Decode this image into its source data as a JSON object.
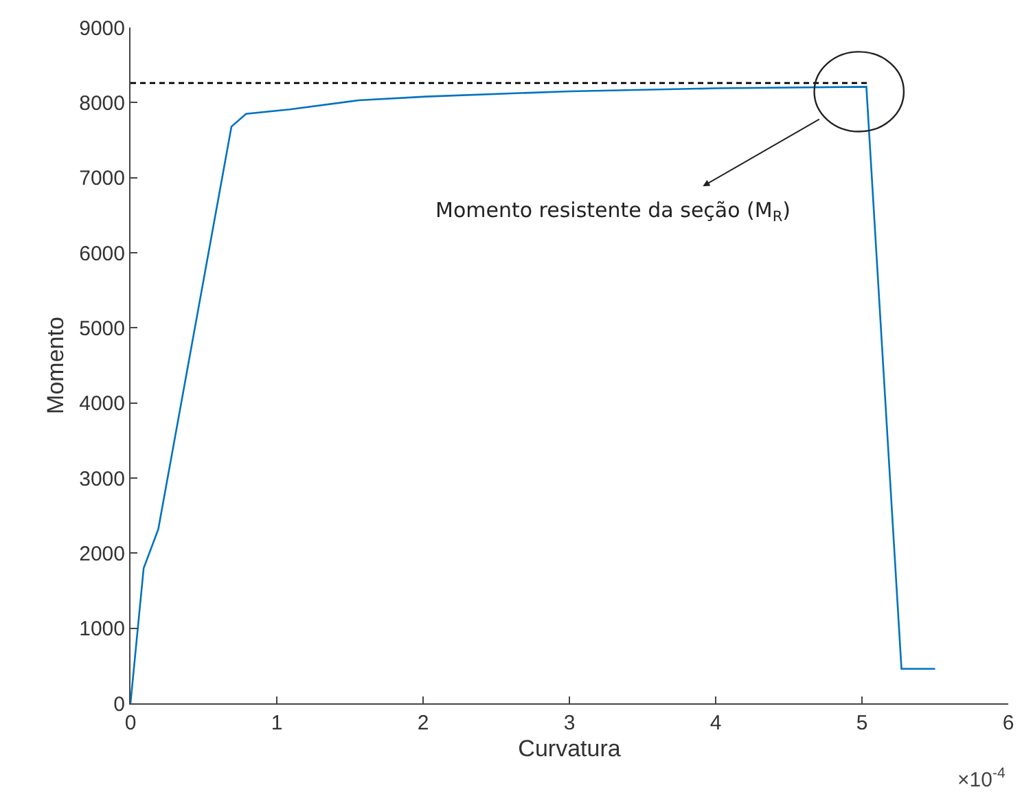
{
  "chart_data": {
    "type": "line",
    "xlabel": "Curvatura",
    "ylabel": "Momento",
    "series": [
      {
        "color": "#0072bd",
        "line_style": "solid",
        "x": [
          0,
          0.09,
          0.19,
          0.69,
          0.79,
          1.09,
          1.56,
          2.02,
          3.0,
          4.0,
          5.03,
          5.27,
          5.5
        ],
        "values": [
          0,
          1800,
          2320,
          7680,
          7850,
          7910,
          8030,
          8080,
          8150,
          8190,
          8210,
          460,
          460
        ]
      },
      {
        "type": "line",
        "color": "#000000",
        "line_style": "dashed",
        "x": [
          0,
          5.06
        ],
        "values": [
          8260,
          8260
        ]
      }
    ],
    "xlim": [
      0,
      6
    ],
    "xticks": [
      0,
      1,
      2,
      3,
      4,
      5,
      6
    ],
    "ylim": [
      0,
      9000
    ],
    "yticks": [
      0,
      1000,
      2000,
      3000,
      4000,
      5000,
      6000,
      7000,
      8000,
      9000
    ],
    "annotations": [
      "Momento resistente da seção (M$_{R}$)",
      "×10$^{-4}$"
    ]
  }
}
